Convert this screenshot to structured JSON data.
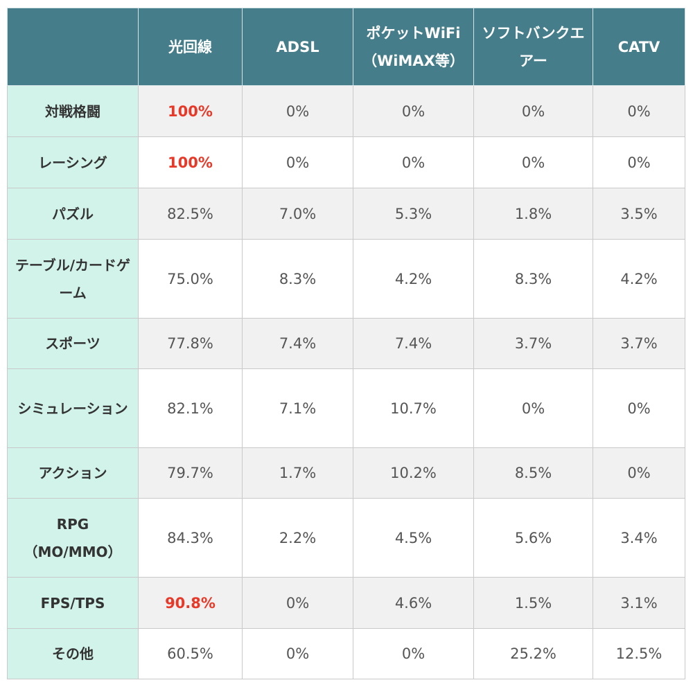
{
  "table": {
    "headers": [
      "",
      "光回線",
      "ADSL",
      "ポケットWiFi（WiMAX等）",
      "ソフトバンクエアー",
      "CATV"
    ],
    "rows": [
      {
        "label": "対戦格闘",
        "values": [
          "100%",
          "0%",
          "0%",
          "0%",
          "0%"
        ],
        "highlight": [
          0
        ]
      },
      {
        "label": "レーシング",
        "values": [
          "100%",
          "0%",
          "0%",
          "0%",
          "0%"
        ],
        "highlight": [
          0
        ]
      },
      {
        "label": "パズル",
        "values": [
          "82.5%",
          "7.0%",
          "5.3%",
          "1.8%",
          "3.5%"
        ],
        "highlight": []
      },
      {
        "label": "テーブル/カードゲーム",
        "values": [
          "75.0%",
          "8.3%",
          "4.2%",
          "8.3%",
          "4.2%"
        ],
        "highlight": []
      },
      {
        "label": "スポーツ",
        "values": [
          "77.8%",
          "7.4%",
          "7.4%",
          "3.7%",
          "3.7%"
        ],
        "highlight": []
      },
      {
        "label": "シミュレーション",
        "values": [
          "82.1%",
          "7.1%",
          "10.7%",
          "0%",
          "0%"
        ],
        "highlight": []
      },
      {
        "label": "アクション",
        "values": [
          "79.7%",
          "1.7%",
          "10.2%",
          "8.5%",
          "0%"
        ],
        "highlight": []
      },
      {
        "label": "RPG（MO/MMO）",
        "values": [
          "84.3%",
          "2.2%",
          "4.5%",
          "5.6%",
          "3.4%"
        ],
        "highlight": []
      },
      {
        "label": "FPS/TPS",
        "values": [
          "90.8%",
          "0%",
          "4.6%",
          "1.5%",
          "3.1%"
        ],
        "highlight": [
          0
        ]
      },
      {
        "label": "その他",
        "values": [
          "60.5%",
          "0%",
          "0%",
          "25.2%",
          "12.5%"
        ],
        "highlight": []
      }
    ]
  },
  "colors": {
    "header_bg": "#457e8a",
    "header_text": "#ffffff",
    "row_label_bg": "#d2f3ea",
    "shaded_row_bg": "#f1f1f1",
    "highlight_text": "#e83828"
  }
}
